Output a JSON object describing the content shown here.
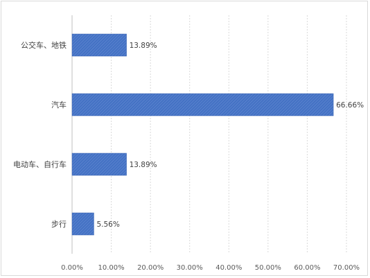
{
  "chart_data": {
    "type": "bar",
    "orientation": "horizontal",
    "categories": [
      "公交车、地铁",
      "汽车",
      "电动车、自行车",
      "步行"
    ],
    "values": [
      13.89,
      66.66,
      13.89,
      5.56
    ],
    "data_labels": [
      "13.89%",
      "66.66%",
      "13.89%",
      "5.56%"
    ],
    "x_ticks": [
      0,
      10,
      20,
      30,
      40,
      50,
      60,
      70
    ],
    "x_tick_labels": [
      "0.00%",
      "10.00%",
      "20.00%",
      "30.00%",
      "40.00%",
      "50.00%",
      "60.00%",
      "70.00%"
    ],
    "xlim": [
      0,
      70
    ],
    "grid": "vertical",
    "legend": "none",
    "bar_color": "#4472c4"
  }
}
